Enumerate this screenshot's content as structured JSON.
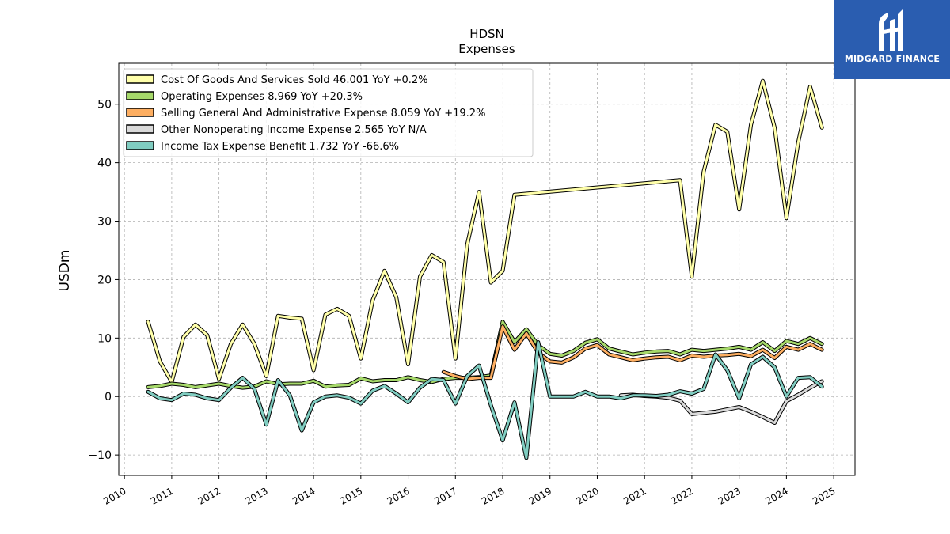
{
  "chart_data": {
    "type": "line",
    "title": "HDSN",
    "subtitle": "Expenses",
    "ylabel": "USDm",
    "xlabel": "",
    "ylim": [
      -13.5,
      57
    ],
    "xlim": [
      2009.88,
      2025.45
    ],
    "yticks": [
      -10,
      0,
      10,
      20,
      30,
      40,
      50
    ],
    "ytick_labels": [
      "−10",
      "0",
      "10",
      "20",
      "30",
      "40",
      "50"
    ],
    "xticks": [
      2010,
      2011,
      2012,
      2013,
      2014,
      2015,
      2016,
      2017,
      2018,
      2019,
      2020,
      2021,
      2022,
      2023,
      2024,
      2025
    ],
    "grid": true,
    "legend_position": "top-left",
    "series": [
      {
        "name": "Cost Of Goods And Services Sold  46.001 YoY +0.2%",
        "color": "#ffffaa",
        "points": [
          [
            2010.5,
            12.8
          ],
          [
            2010.75,
            6
          ],
          [
            2011.0,
            2.5
          ],
          [
            2011.25,
            10.2
          ],
          [
            2011.5,
            12.3
          ],
          [
            2011.75,
            10.5
          ],
          [
            2012.0,
            3
          ],
          [
            2012.25,
            9
          ],
          [
            2012.5,
            12.3
          ],
          [
            2012.75,
            9
          ],
          [
            2013.0,
            3.5
          ],
          [
            2013.25,
            13.8
          ],
          [
            2013.5,
            13.5
          ],
          [
            2013.75,
            13.3
          ],
          [
            2014.0,
            4.5
          ],
          [
            2014.25,
            14
          ],
          [
            2014.5,
            15
          ],
          [
            2014.75,
            13.8
          ],
          [
            2015.0,
            6.5
          ],
          [
            2015.25,
            16.5
          ],
          [
            2015.5,
            21.5
          ],
          [
            2015.75,
            17
          ],
          [
            2016.0,
            5.5
          ],
          [
            2016.25,
            20.5
          ],
          [
            2016.5,
            24.2
          ],
          [
            2016.75,
            23
          ],
          [
            2017.0,
            6.5
          ],
          [
            2017.25,
            26
          ],
          [
            2017.5,
            35
          ],
          [
            2017.75,
            19.5
          ],
          [
            2018.0,
            21.5
          ],
          [
            2018.25,
            34.5
          ],
          [
            2021.75,
            37
          ],
          [
            2022.0,
            20.5
          ],
          [
            2022.25,
            38.5
          ],
          [
            2022.5,
            46.5
          ],
          [
            2022.75,
            45.3
          ],
          [
            2023.0,
            32
          ],
          [
            2023.25,
            46.5
          ],
          [
            2023.5,
            54
          ],
          [
            2023.75,
            46
          ],
          [
            2024.0,
            30.5
          ],
          [
            2024.25,
            43.5
          ],
          [
            2024.5,
            53
          ],
          [
            2024.75,
            46
          ]
        ]
      },
      {
        "name": "Operating Expenses  8.969 YoY +20.3%",
        "color": "#a6d96a",
        "points": [
          [
            2010.5,
            1.6
          ],
          [
            2010.75,
            1.8
          ],
          [
            2011.0,
            2.2
          ],
          [
            2011.25,
            2
          ],
          [
            2011.5,
            1.6
          ],
          [
            2011.75,
            1.9
          ],
          [
            2012.0,
            2.2
          ],
          [
            2012.25,
            1.8
          ],
          [
            2012.5,
            1.5
          ],
          [
            2012.75,
            1.7
          ],
          [
            2013.0,
            2.6
          ],
          [
            2013.25,
            2.1
          ],
          [
            2013.5,
            2.2
          ],
          [
            2013.75,
            2.2
          ],
          [
            2014.0,
            2.7
          ],
          [
            2014.25,
            1.7
          ],
          [
            2014.5,
            1.9
          ],
          [
            2014.75,
            2
          ],
          [
            2015.0,
            3.1
          ],
          [
            2015.25,
            2.6
          ],
          [
            2015.5,
            2.8
          ],
          [
            2015.75,
            2.8
          ],
          [
            2016.0,
            3.3
          ],
          [
            2016.25,
            2.8
          ],
          [
            2016.5,
            2.5
          ],
          [
            2016.75,
            3
          ],
          [
            2017.0,
            3.2
          ],
          [
            2017.25,
            3.2
          ],
          [
            2017.5,
            3.3
          ],
          [
            2017.75,
            3.6
          ],
          [
            2018.0,
            12.8
          ],
          [
            2018.25,
            9.3
          ],
          [
            2018.5,
            11.5
          ],
          [
            2018.75,
            8.8
          ],
          [
            2019.0,
            7.3
          ],
          [
            2019.25,
            7
          ],
          [
            2019.5,
            7.8
          ],
          [
            2019.75,
            9.2
          ],
          [
            2020.0,
            9.8
          ],
          [
            2020.25,
            8.2
          ],
          [
            2020.5,
            7.7
          ],
          [
            2020.75,
            7.2
          ],
          [
            2021.0,
            7.5
          ],
          [
            2021.25,
            7.7
          ],
          [
            2021.5,
            7.8
          ],
          [
            2021.75,
            7.2
          ],
          [
            2022.0,
            8
          ],
          [
            2022.25,
            7.8
          ],
          [
            2022.5,
            8
          ],
          [
            2022.75,
            8.2
          ],
          [
            2023.0,
            8.5
          ],
          [
            2023.25,
            8
          ],
          [
            2023.5,
            9.3
          ],
          [
            2023.75,
            7.8
          ],
          [
            2024.0,
            9.5
          ],
          [
            2024.25,
            9
          ],
          [
            2024.5,
            10
          ],
          [
            2024.75,
            9
          ]
        ]
      },
      {
        "name": "Selling General And Administrative Expense  8.059 YoY +19.2%",
        "color": "#fdae61",
        "points": [
          [
            2016.75,
            4.2
          ],
          [
            2017.0,
            3.5
          ],
          [
            2017.25,
            3
          ],
          [
            2017.5,
            3.2
          ],
          [
            2017.75,
            3.2
          ],
          [
            2018.0,
            12
          ],
          [
            2018.25,
            8
          ],
          [
            2018.5,
            10.8
          ],
          [
            2018.75,
            7.5
          ],
          [
            2019.0,
            6
          ],
          [
            2019.25,
            5.8
          ],
          [
            2019.5,
            6.7
          ],
          [
            2019.75,
            8.2
          ],
          [
            2020.0,
            8.8
          ],
          [
            2020.25,
            7.2
          ],
          [
            2020.5,
            6.7
          ],
          [
            2020.75,
            6.2
          ],
          [
            2021.0,
            6.5
          ],
          [
            2021.25,
            6.7
          ],
          [
            2021.5,
            6.8
          ],
          [
            2021.75,
            6.2
          ],
          [
            2022.0,
            7
          ],
          [
            2022.25,
            6.8
          ],
          [
            2022.5,
            7
          ],
          [
            2022.75,
            7.1
          ],
          [
            2023.0,
            7.3
          ],
          [
            2023.25,
            6.9
          ],
          [
            2023.5,
            8
          ],
          [
            2023.75,
            6.6
          ],
          [
            2024.0,
            8.5
          ],
          [
            2024.25,
            8
          ],
          [
            2024.5,
            9
          ],
          [
            2024.75,
            8
          ]
        ]
      },
      {
        "name": "Other Nonoperating Income Expense  2.565 YoY N/A",
        "color": "#d9d9d9",
        "points": [
          [
            2020.5,
            0.2
          ],
          [
            2020.75,
            0.3
          ],
          [
            2021.0,
            0.1
          ],
          [
            2021.25,
            0
          ],
          [
            2021.5,
            -0.2
          ],
          [
            2021.75,
            -0.7
          ],
          [
            2022.0,
            -3
          ],
          [
            2022.25,
            -2.8
          ],
          [
            2022.5,
            -2.6
          ],
          [
            2022.75,
            -2.2
          ],
          [
            2023.0,
            -1.8
          ],
          [
            2023.25,
            -2.6
          ],
          [
            2023.5,
            -3.5
          ],
          [
            2023.75,
            -4.5
          ],
          [
            2024.0,
            -0.8
          ],
          [
            2024.25,
            0.3
          ],
          [
            2024.5,
            1.5
          ],
          [
            2024.75,
            2.6
          ]
        ]
      },
      {
        "name": "Income Tax Expense Benefit  1.732 YoY -66.6%",
        "color": "#80cdc1",
        "points": [
          [
            2010.5,
            0.8
          ],
          [
            2010.75,
            -0.3
          ],
          [
            2011.0,
            -0.6
          ],
          [
            2011.25,
            0.5
          ],
          [
            2011.5,
            0.3
          ],
          [
            2011.75,
            -0.3
          ],
          [
            2012.0,
            -0.6
          ],
          [
            2012.25,
            1.5
          ],
          [
            2012.5,
            3.2
          ],
          [
            2012.75,
            1.3
          ],
          [
            2013.0,
            -4.8
          ],
          [
            2013.25,
            2.8
          ],
          [
            2013.5,
            0.2
          ],
          [
            2013.75,
            -5.8
          ],
          [
            2014.0,
            -1
          ],
          [
            2014.25,
            0
          ],
          [
            2014.5,
            0.2
          ],
          [
            2014.75,
            -0.2
          ],
          [
            2015.0,
            -1.2
          ],
          [
            2015.25,
            1
          ],
          [
            2015.5,
            1.8
          ],
          [
            2015.75,
            0.5
          ],
          [
            2016.0,
            -1
          ],
          [
            2016.25,
            1.5
          ],
          [
            2016.5,
            3
          ],
          [
            2016.75,
            2.8
          ],
          [
            2017.0,
            -1.2
          ],
          [
            2017.25,
            3.5
          ],
          [
            2017.5,
            5.3
          ],
          [
            2017.75,
            -1.5
          ],
          [
            2018.0,
            -7.5
          ],
          [
            2018.25,
            -1
          ],
          [
            2018.5,
            -10.5
          ],
          [
            2018.75,
            9.3
          ],
          [
            2019.0,
            0
          ],
          [
            2019.25,
            0
          ],
          [
            2019.5,
            0
          ],
          [
            2019.75,
            0.8
          ],
          [
            2020.0,
            0
          ],
          [
            2020.25,
            0
          ],
          [
            2020.5,
            -0.3
          ],
          [
            2020.75,
            0.2
          ],
          [
            2021.0,
            0.2
          ],
          [
            2021.25,
            0.1
          ],
          [
            2021.5,
            0.3
          ],
          [
            2021.75,
            0.9
          ],
          [
            2022.0,
            0.5
          ],
          [
            2022.25,
            1.3
          ],
          [
            2022.5,
            7.2
          ],
          [
            2022.75,
            4.5
          ],
          [
            2023.0,
            -0.3
          ],
          [
            2023.25,
            5.5
          ],
          [
            2023.5,
            6.8
          ],
          [
            2023.75,
            5
          ],
          [
            2024.0,
            0
          ],
          [
            2024.25,
            3.2
          ],
          [
            2024.5,
            3.3
          ],
          [
            2024.75,
            1.7
          ]
        ]
      }
    ]
  },
  "logo": {
    "text": "MIDGARD FINANCE",
    "background": "#2a5db0"
  }
}
